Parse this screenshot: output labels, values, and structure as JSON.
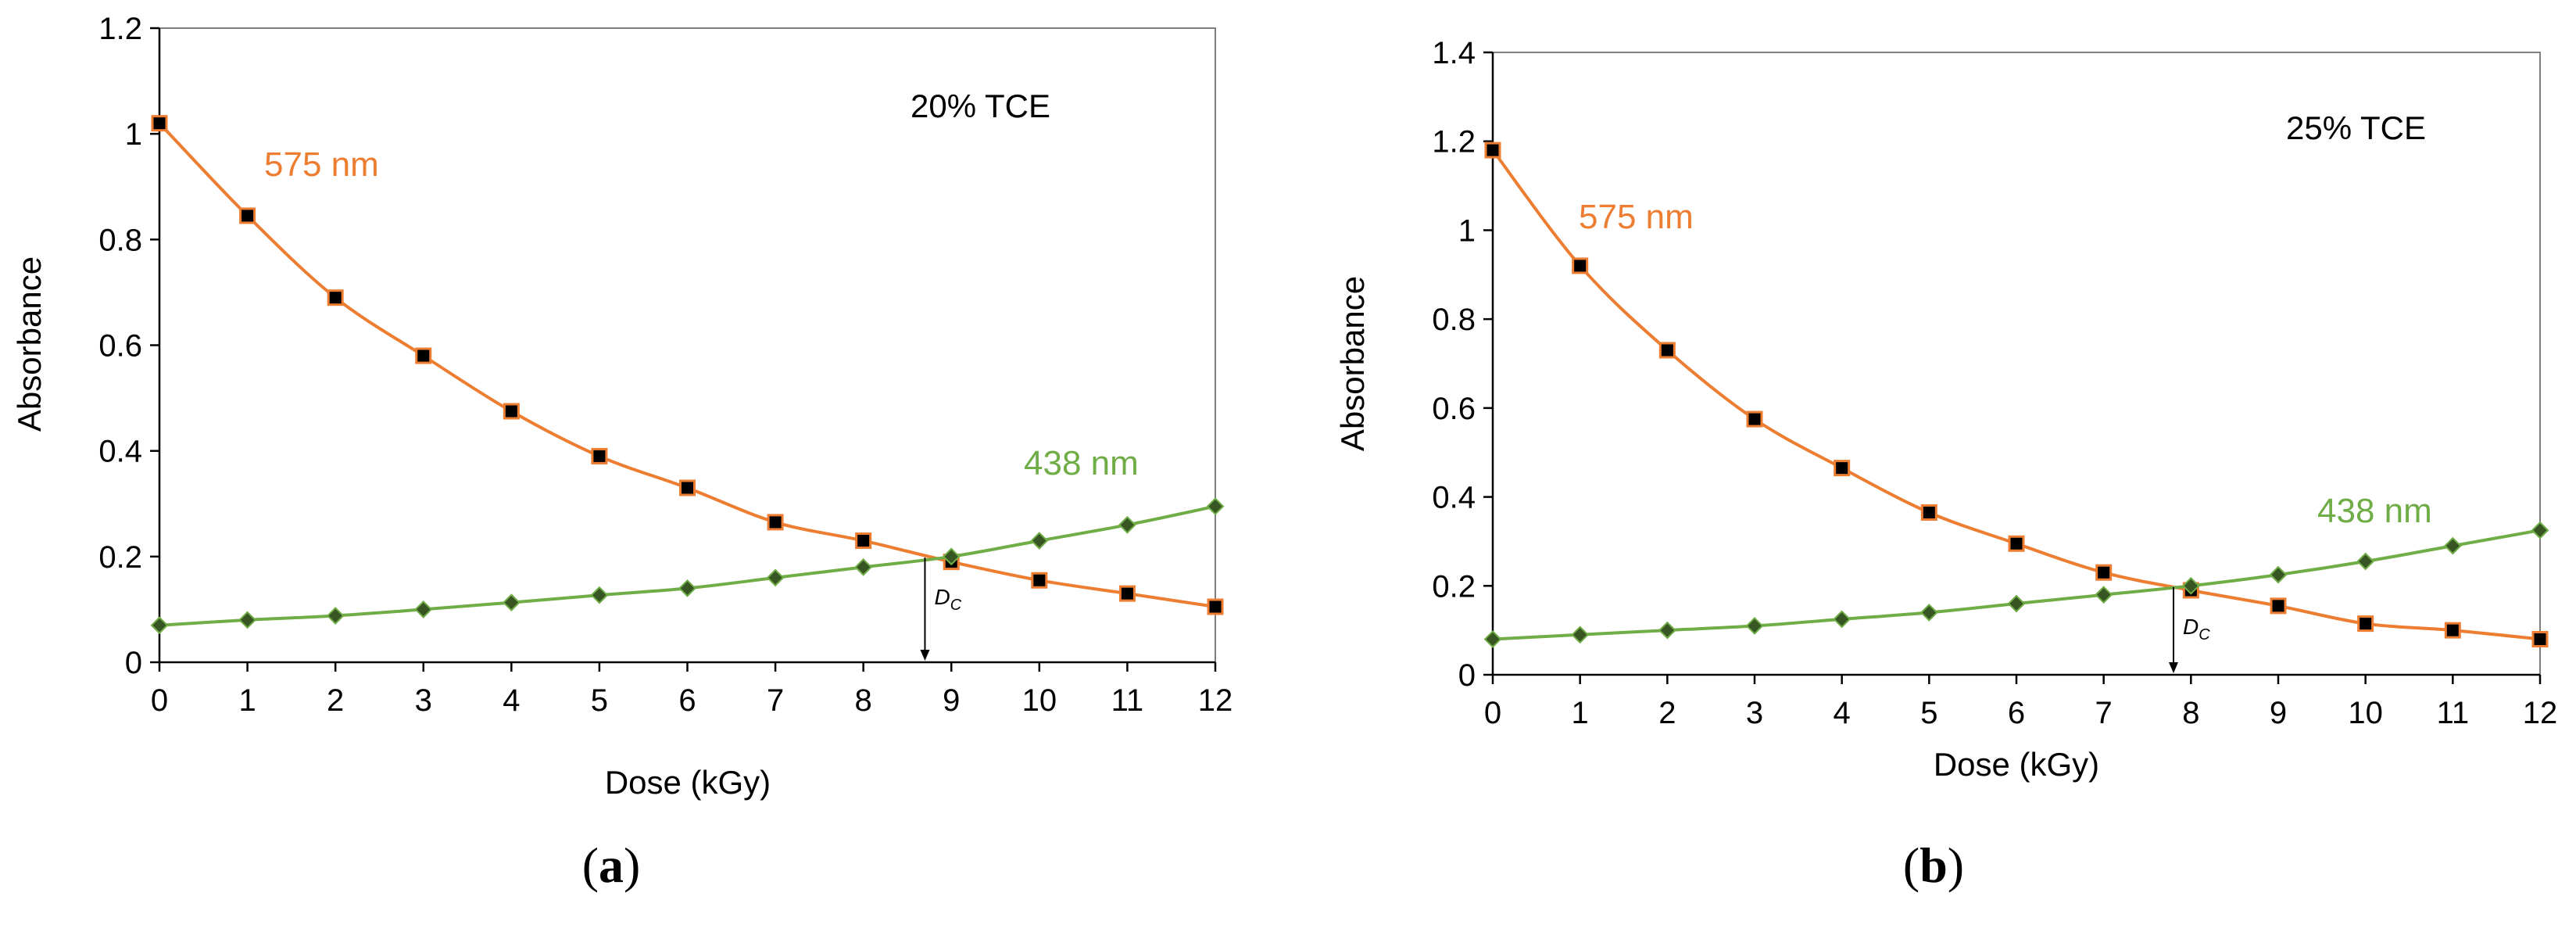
{
  "colors": {
    "series_575": "#ED7D31",
    "series_438": "#70AD47",
    "marker_575": "#000000",
    "marker_438": "#375623",
    "axis": "#000000",
    "text": "#000000"
  },
  "chart_data": [
    {
      "type": "line",
      "panel": "a",
      "caption": "(a)",
      "annotation": "20% TCE",
      "xlabel": "Dose (kGy)",
      "ylabel": "Absorbance",
      "xlim": [
        0,
        12
      ],
      "ylim": [
        0,
        1.2
      ],
      "xticks": [
        "0",
        "1",
        "2",
        "3",
        "4",
        "5",
        "6",
        "7",
        "8",
        "9",
        "10",
        "11",
        "12"
      ],
      "yticks": [
        "0",
        "0.2",
        "0.4",
        "0.6",
        "0.8",
        "1",
        "1.2"
      ],
      "x": [
        0,
        1,
        2,
        3,
        4,
        5,
        6,
        7,
        8,
        9,
        10,
        11,
        12
      ],
      "series": [
        {
          "name": "575 nm",
          "label": "575 nm",
          "values": [
            1.02,
            0.845,
            0.69,
            0.58,
            0.475,
            0.39,
            0.33,
            0.265,
            0.23,
            0.19,
            0.155,
            0.13,
            0.105
          ]
        },
        {
          "name": "438 nm",
          "label": "438 nm",
          "values": [
            0.07,
            0.08,
            0.088,
            0.1,
            0.113,
            0.127,
            0.14,
            0.16,
            0.18,
            0.2,
            0.23,
            0.26,
            0.295
          ]
        }
      ],
      "dc": {
        "label": "D",
        "subscript": "C",
        "value": 8.7
      }
    },
    {
      "type": "line",
      "panel": "b",
      "caption": "(b)",
      "annotation": "25% TCE",
      "xlabel": "Dose (kGy)",
      "ylabel": "Absorbance",
      "xlim": [
        0,
        12
      ],
      "ylim": [
        0,
        1.4
      ],
      "xticks": [
        "0",
        "1",
        "2",
        "3",
        "4",
        "5",
        "6",
        "7",
        "8",
        "9",
        "10",
        "11",
        "12"
      ],
      "yticks": [
        "0",
        "0.2",
        "0.4",
        "0.6",
        "0.8",
        "1",
        "1.2",
        "1.4"
      ],
      "x": [
        0,
        1,
        2,
        3,
        4,
        5,
        6,
        7,
        8,
        9,
        10,
        11,
        12
      ],
      "series": [
        {
          "name": "575 nm",
          "label": "575 nm",
          "values": [
            1.18,
            0.92,
            0.73,
            0.575,
            0.465,
            0.365,
            0.295,
            0.23,
            0.19,
            0.155,
            0.115,
            0.1,
            0.08
          ]
        },
        {
          "name": "438 nm",
          "label": "438 nm",
          "values": [
            0.08,
            0.09,
            0.1,
            0.11,
            0.125,
            0.14,
            0.16,
            0.18,
            0.2,
            0.225,
            0.255,
            0.29,
            0.325
          ]
        }
      ],
      "dc": {
        "label": "D",
        "subscript": "C",
        "value": 7.8
      }
    }
  ]
}
